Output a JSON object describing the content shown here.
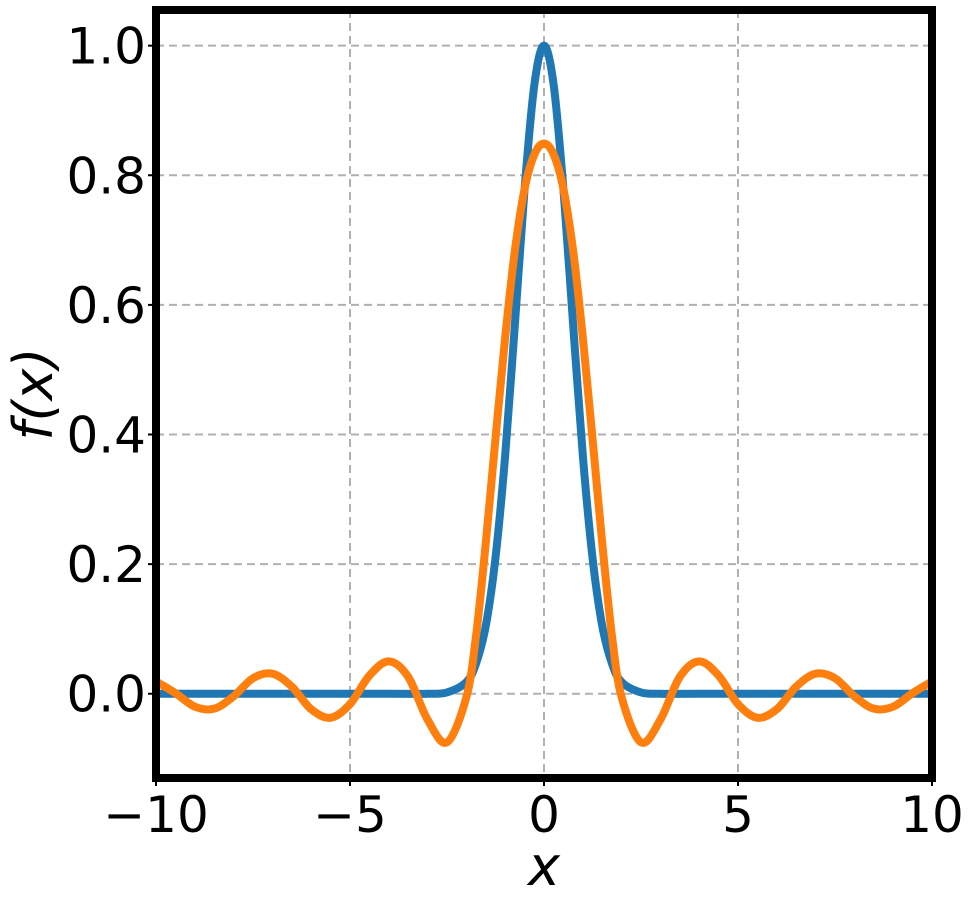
{
  "chart_data": {
    "type": "line",
    "title": "",
    "xlabel": "x",
    "ylabel": "f(x)",
    "xlim": [
      -10,
      10
    ],
    "ylim": [
      -0.13,
      1.055
    ],
    "xticks": [
      -10,
      -5,
      0,
      5,
      10
    ],
    "xtick_labels": [
      "−10",
      "−5",
      "0",
      "5",
      "10"
    ],
    "yticks": [
      0.0,
      0.2,
      0.4,
      0.6,
      0.8,
      1.0
    ],
    "ytick_labels": [
      "0.0",
      "0.2",
      "0.4",
      "0.6",
      "0.8",
      "1.0"
    ],
    "grid": true,
    "legend": "none",
    "series": [
      {
        "color": "#1f77b4",
        "x": [
          -10,
          -4,
          -3,
          -2.5,
          -2,
          -1.75,
          -1.5,
          -1.25,
          -1,
          -0.75,
          -0.5,
          -0.25,
          0,
          0.25,
          0.5,
          0.75,
          1,
          1.25,
          1.5,
          1.75,
          2,
          2.5,
          3,
          4,
          10
        ],
        "y": [
          0.0,
          0.0,
          0.0,
          0.002,
          0.018,
          0.047,
          0.105,
          0.21,
          0.368,
          0.57,
          0.779,
          0.939,
          1.0,
          0.939,
          0.779,
          0.57,
          0.368,
          0.21,
          0.105,
          0.047,
          0.018,
          0.002,
          0.0,
          0.0,
          0.0
        ]
      },
      {
        "color": "#ff7f0e",
        "x": [
          -10,
          -9.5,
          -9,
          -8.5,
          -8,
          -7.5,
          -7,
          -6.5,
          -6,
          -5.5,
          -5,
          -4.5,
          -4,
          -3.5,
          -3,
          -2.5,
          -2,
          -1.75,
          -1.5,
          -1.25,
          -1,
          -0.75,
          -0.5,
          -0.25,
          0,
          0.25,
          0.5,
          0.75,
          1,
          1.25,
          1.5,
          1.75,
          2,
          2.5,
          3,
          3.5,
          4,
          4.5,
          5,
          5.5,
          6,
          6.5,
          7,
          7.5,
          8,
          8.5,
          9,
          9.5,
          10
        ],
        "y": [
          0.019,
          0.001,
          -0.02,
          -0.023,
          -0.004,
          0.024,
          0.031,
          0.011,
          -0.024,
          -0.037,
          -0.016,
          0.028,
          0.05,
          0.026,
          -0.04,
          -0.075,
          -0.005,
          0.09,
          0.233,
          0.394,
          0.55,
          0.684,
          0.779,
          0.832,
          0.849,
          0.832,
          0.779,
          0.684,
          0.55,
          0.394,
          0.233,
          0.09,
          -0.005,
          -0.075,
          -0.04,
          0.026,
          0.05,
          0.028,
          -0.016,
          -0.037,
          -0.024,
          0.011,
          0.031,
          0.024,
          -0.004,
          -0.023,
          -0.02,
          0.001,
          0.019
        ]
      }
    ]
  }
}
